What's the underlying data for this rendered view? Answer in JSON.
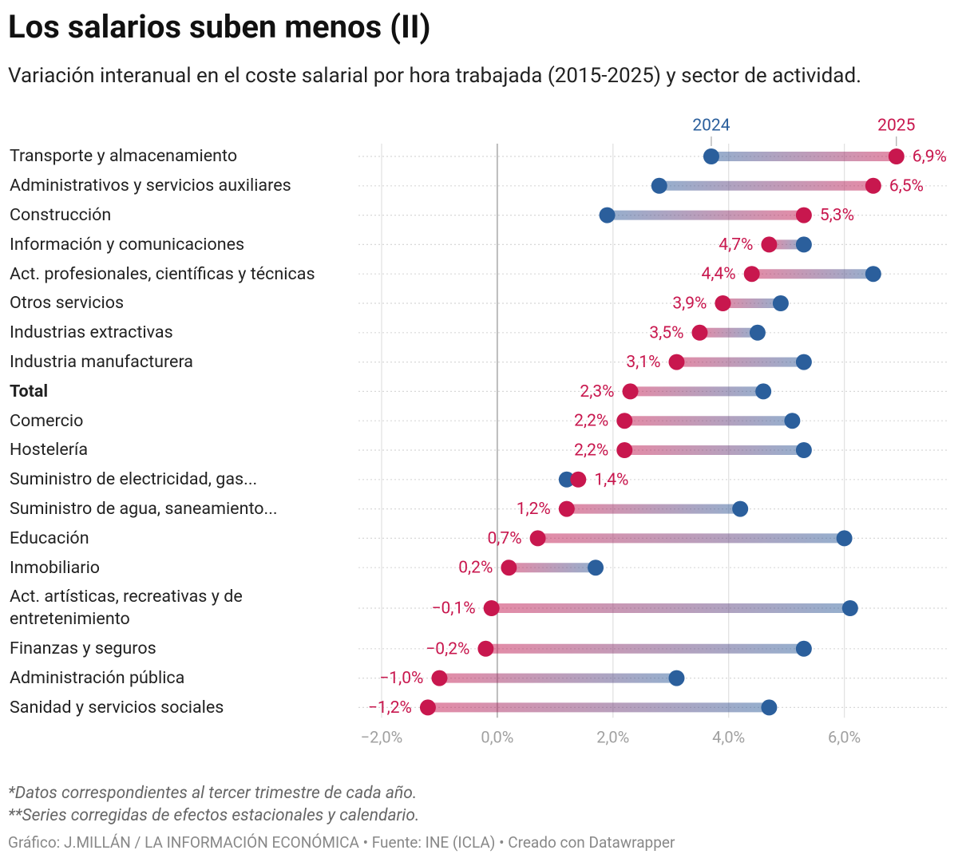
{
  "chart_data": {
    "type": "dumbbell",
    "title": "Los salarios suben menos (II)",
    "subtitle": "Variación interanual en el coste salarial por hora trabajada (2015-2025) y sector de actividad.",
    "categories": [
      "Transporte y almacenamiento",
      "Administrativos y servicios auxiliares",
      "Construcción",
      "Información y comunicaciones",
      "Act. profesionales, científicas y técnicas",
      "Otros servicios",
      "Industrias extractivas",
      "Industria manufacturera",
      "Total",
      "Comercio",
      "Hostelería",
      "Suministro de electricidad, gas...",
      "Suministro de agua, saneamiento...",
      "Educación",
      "Inmobiliario",
      "Act. artísticas, recreativas y de entretenimiento",
      "Finanzas y seguros",
      "Administración pública",
      "Sanidad y servicios sociales"
    ],
    "series": [
      {
        "name": "2024",
        "color": "#2b5f9c",
        "values": [
          3.7,
          2.8,
          1.9,
          5.3,
          6.5,
          4.9,
          4.5,
          5.3,
          4.6,
          5.1,
          5.3,
          1.2,
          4.2,
          6.0,
          1.7,
          6.1,
          5.3,
          3.1,
          4.7
        ]
      },
      {
        "name": "2025",
        "color": "#c8174e",
        "values": [
          6.9,
          6.5,
          5.3,
          4.7,
          4.4,
          3.9,
          3.5,
          3.1,
          2.3,
          2.2,
          2.2,
          1.4,
          1.2,
          0.7,
          0.2,
          -0.1,
          -0.2,
          -1.0,
          -1.2
        ],
        "value_labels": [
          "6,9%",
          "6,5%",
          "5,3%",
          "4,7%",
          "4,4%",
          "3,9%",
          "3,5%",
          "3,1%",
          "2,3%",
          "2,2%",
          "2,2%",
          "1,4%",
          "1,2%",
          "0,7%",
          "0,2%",
          "−0,1%",
          "−0,2%",
          "−1,0%",
          "−1,2%"
        ]
      }
    ],
    "xlim": [
      -2.4,
      7.8
    ],
    "xticks": [
      {
        "value": -2,
        "label": "−2,0%"
      },
      {
        "value": 0,
        "label": "0,0%"
      },
      {
        "value": 2,
        "label": "2,0%"
      },
      {
        "value": 4,
        "label": "4,0%"
      },
      {
        "value": 6,
        "label": "6,0%"
      }
    ],
    "grid": true,
    "notes": [
      "*Datos correspondientes al tercer trimestre de cada año.",
      "**Series corregidas de efectos estacionales y calendario."
    ],
    "source": "Gráfico: J.MILLÁN / LA INFORMACIÓN ECONÓMICA • Fuente: INE (ICLA) • Creado con Datawrapper"
  }
}
